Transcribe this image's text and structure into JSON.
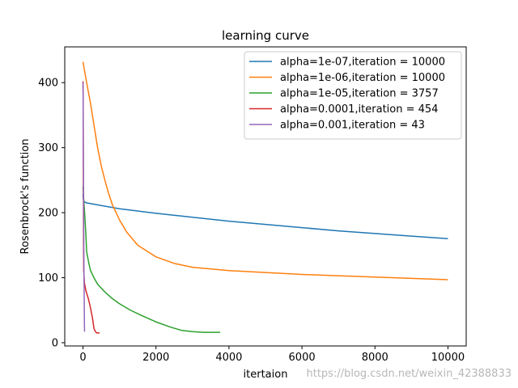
{
  "chart_data": {
    "type": "line",
    "title": "learning curve",
    "xlabel": "itertaion",
    "ylabel": "Rosenbrock's function",
    "xlim": [
      -500,
      10500
    ],
    "ylim": [
      -5,
      455
    ],
    "xticks": [
      0,
      2000,
      4000,
      6000,
      8000,
      10000
    ],
    "yticks": [
      0,
      100,
      200,
      300,
      400
    ],
    "legend_position": "top-right",
    "grid": false,
    "series": [
      {
        "name": "alpha=1e-07,iteration = 10000",
        "color": "#1f77b4",
        "points": [
          [
            0,
            229
          ],
          [
            8,
            221
          ],
          [
            30,
            217
          ],
          [
            100,
            215
          ],
          [
            500,
            211
          ],
          [
            1000,
            206
          ],
          [
            2000,
            199
          ],
          [
            3000,
            193
          ],
          [
            4000,
            187
          ],
          [
            5000,
            182
          ],
          [
            6000,
            177
          ],
          [
            7000,
            172
          ],
          [
            8000,
            168
          ],
          [
            9000,
            164
          ],
          [
            10000,
            160
          ]
        ]
      },
      {
        "name": "alpha=1e-06,iteration = 10000",
        "color": "#ff7f0e",
        "points": [
          [
            0,
            432
          ],
          [
            100,
            400
          ],
          [
            200,
            370
          ],
          [
            300,
            335
          ],
          [
            400,
            300
          ],
          [
            500,
            272
          ],
          [
            600,
            250
          ],
          [
            700,
            230
          ],
          [
            800,
            213
          ],
          [
            1000,
            189
          ],
          [
            1200,
            170
          ],
          [
            1500,
            150
          ],
          [
            2000,
            132
          ],
          [
            2500,
            122
          ],
          [
            3000,
            116
          ],
          [
            4000,
            111
          ],
          [
            5000,
            108
          ],
          [
            6000,
            105
          ],
          [
            7000,
            103
          ],
          [
            8000,
            101
          ],
          [
            9000,
            99
          ],
          [
            10000,
            97
          ]
        ]
      },
      {
        "name": "alpha=1e-05,iteration = 3757",
        "color": "#2ca02c",
        "points": [
          [
            0,
            240
          ],
          [
            20,
            220
          ],
          [
            50,
            195
          ],
          [
            80,
            165
          ],
          [
            100,
            140
          ],
          [
            150,
            125
          ],
          [
            200,
            112
          ],
          [
            300,
            100
          ],
          [
            400,
            90
          ],
          [
            600,
            78
          ],
          [
            800,
            68
          ],
          [
            1000,
            60
          ],
          [
            1300,
            50
          ],
          [
            1600,
            42
          ],
          [
            2000,
            32
          ],
          [
            2400,
            24
          ],
          [
            2700,
            19
          ],
          [
            3000,
            17
          ],
          [
            3300,
            16
          ],
          [
            3757,
            16
          ]
        ]
      },
      {
        "name": "alpha=0.0001,iteration = 454",
        "color": "#d62728",
        "points": [
          [
            0,
            402
          ],
          [
            5,
            380
          ],
          [
            10,
            250
          ],
          [
            15,
            160
          ],
          [
            20,
            110
          ],
          [
            40,
            92
          ],
          [
            80,
            80
          ],
          [
            150,
            67
          ],
          [
            200,
            55
          ],
          [
            260,
            38
          ],
          [
            300,
            22
          ],
          [
            340,
            17
          ],
          [
            380,
            15
          ],
          [
            454,
            15
          ]
        ]
      },
      {
        "name": "alpha=0.001,iteration = 43",
        "color": "#9467bd",
        "points": [
          [
            0,
            400
          ],
          [
            3,
            380
          ],
          [
            8,
            300
          ],
          [
            15,
            230
          ],
          [
            22,
            150
          ],
          [
            28,
            100
          ],
          [
            34,
            60
          ],
          [
            40,
            25
          ],
          [
            43,
            17
          ]
        ]
      }
    ]
  },
  "watermark": "https://blog.csdn.net/weixin_42388833"
}
